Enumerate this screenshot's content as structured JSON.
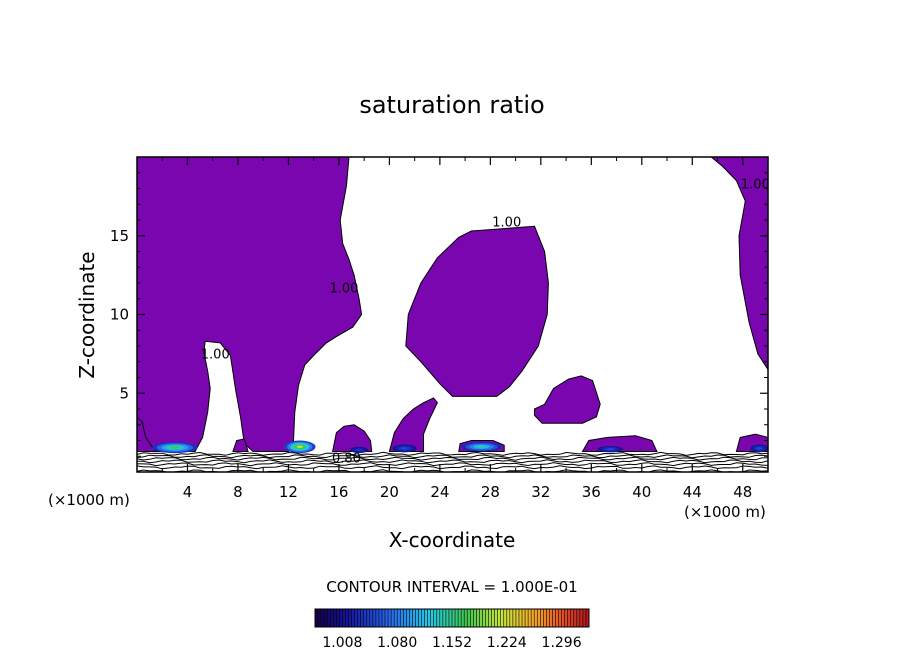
{
  "chart_data": {
    "type": "heatmap",
    "title": "saturation ratio",
    "xlabel": "X-coordinate",
    "ylabel": "Z-coordinate",
    "x_unit_left": "(×1000 m)",
    "x_unit_right": "(×1000 m)",
    "x_ticks": [
      4,
      8,
      12,
      16,
      20,
      24,
      28,
      32,
      36,
      40,
      44,
      48
    ],
    "y_ticks": [
      5,
      10,
      15
    ],
    "xlim": [
      0,
      50
    ],
    "ylim": [
      0,
      20
    ],
    "contour_interval_label": "CONTOUR INTERVAL = 1.000E-01",
    "contour_labels": [
      {
        "text": "1.00",
        "x": 29.3,
        "y": 15.6
      },
      {
        "text": "1.00",
        "x": 49,
        "y": 18
      },
      {
        "text": "1.00",
        "x": 16.4,
        "y": 11.4
      },
      {
        "text": "1.00",
        "x": 6.2,
        "y": 7.2
      },
      {
        "text": "0.80",
        "x": 16.6,
        "y": 0.6
      }
    ],
    "colorbar": {
      "ticks": [
        "1.008",
        "1.080",
        "1.152",
        "1.224",
        "1.296"
      ],
      "min": 0.972,
      "max": 1.332
    },
    "fill_color": "#7a06b0",
    "regions": [
      {
        "name": "left-mass",
        "points": [
          [
            0,
            20
          ],
          [
            16.8,
            20
          ],
          [
            16.6,
            18.2
          ],
          [
            16.1,
            16
          ],
          [
            16.3,
            14.5
          ],
          [
            16.8,
            13.5
          ],
          [
            17.2,
            12.5
          ],
          [
            17.6,
            11
          ],
          [
            17.8,
            10
          ],
          [
            17.1,
            9.2
          ],
          [
            15.8,
            8.6
          ],
          [
            15,
            8.2
          ],
          [
            14,
            7.4
          ],
          [
            13.3,
            6.8
          ],
          [
            12.8,
            5.5
          ],
          [
            12.5,
            3.8
          ],
          [
            12.4,
            2
          ],
          [
            12,
            1.3
          ],
          [
            9.2,
            1.3
          ],
          [
            8.5,
            1.8
          ],
          [
            8.2,
            3.5
          ],
          [
            7.8,
            5.3
          ],
          [
            7.4,
            7.4
          ],
          [
            6.6,
            8.2
          ],
          [
            5.4,
            8.3
          ],
          [
            5.3,
            7.6
          ],
          [
            5.6,
            6.4
          ],
          [
            5.8,
            5.3
          ],
          [
            5.6,
            3.8
          ],
          [
            5.2,
            2.2
          ],
          [
            4.6,
            1.3
          ],
          [
            0,
            1.3
          ]
        ]
      },
      {
        "name": "center-blob",
        "points": [
          [
            26.5,
            15.3
          ],
          [
            31.5,
            15.6
          ],
          [
            32.3,
            14
          ],
          [
            32.6,
            12
          ],
          [
            32.5,
            10
          ],
          [
            31.8,
            8
          ],
          [
            30.5,
            6.4
          ],
          [
            29.5,
            5.4
          ],
          [
            28.5,
            4.8
          ],
          [
            25,
            4.8
          ],
          [
            24,
            5.6
          ],
          [
            22.5,
            7
          ],
          [
            21.3,
            8
          ],
          [
            21.5,
            10
          ],
          [
            22.5,
            12
          ],
          [
            23.8,
            13.6
          ],
          [
            25.5,
            14.9
          ]
        ]
      },
      {
        "name": "right-mass",
        "points": [
          [
            45.5,
            20
          ],
          [
            50,
            20
          ],
          [
            50,
            6.5
          ],
          [
            49.2,
            7.5
          ],
          [
            48.5,
            9.5
          ],
          [
            47.8,
            12.5
          ],
          [
            47.7,
            15
          ],
          [
            48.2,
            17.2
          ],
          [
            47.5,
            18.5
          ],
          [
            46.4,
            19.4
          ]
        ]
      },
      {
        "name": "patch-36",
        "points": [
          [
            31.5,
            4
          ],
          [
            32.3,
            4.3
          ],
          [
            33,
            5.3
          ],
          [
            34.2,
            5.9
          ],
          [
            35.2,
            6.1
          ],
          [
            36.1,
            5.8
          ],
          [
            36.7,
            4.3
          ],
          [
            36.4,
            3.5
          ],
          [
            35.3,
            3.1
          ],
          [
            33.5,
            3.1
          ],
          [
            32.1,
            3.1
          ],
          [
            31.5,
            3.6
          ]
        ]
      },
      {
        "name": "patch-16",
        "points": [
          [
            15.5,
            1.3
          ],
          [
            15.8,
            2.5
          ],
          [
            16.4,
            2.9
          ],
          [
            17.2,
            3
          ],
          [
            18,
            2.6
          ],
          [
            18.5,
            2
          ],
          [
            18.6,
            1.3
          ]
        ]
      },
      {
        "name": "patch-20",
        "points": [
          [
            20,
            1.3
          ],
          [
            20.4,
            2.5
          ],
          [
            21.1,
            3.4
          ],
          [
            21.9,
            4
          ],
          [
            22.7,
            4.4
          ],
          [
            23.5,
            4.7
          ],
          [
            23.8,
            4.4
          ],
          [
            23.2,
            3.4
          ],
          [
            22.7,
            2.4
          ],
          [
            22.7,
            1.3
          ]
        ]
      },
      {
        "name": "patch-28",
        "points": [
          [
            25.5,
            1.3
          ],
          [
            25.6,
            1.8
          ],
          [
            26.5,
            2
          ],
          [
            28.2,
            2
          ],
          [
            29.1,
            1.7
          ],
          [
            29.1,
            1.3
          ]
        ]
      },
      {
        "name": "patch-38",
        "points": [
          [
            35.3,
            1.3
          ],
          [
            35.8,
            2
          ],
          [
            37.3,
            2.2
          ],
          [
            39.5,
            2.3
          ],
          [
            40.8,
            2
          ],
          [
            41.2,
            1.3
          ]
        ]
      },
      {
        "name": "patch-49",
        "points": [
          [
            47.5,
            1.3
          ],
          [
            47.8,
            2.2
          ],
          [
            49,
            2.4
          ],
          [
            50,
            2.2
          ],
          [
            50,
            1.3
          ]
        ]
      },
      {
        "name": "patch-10",
        "points": [
          [
            7.6,
            1.3
          ],
          [
            7.9,
            2
          ],
          [
            8.5,
            2.1
          ],
          [
            8.8,
            1.3
          ]
        ]
      },
      {
        "name": "patch-left-edge",
        "points": [
          [
            0,
            1.3
          ],
          [
            0,
            3.5
          ],
          [
            0.4,
            3.2
          ],
          [
            0.7,
            2.2
          ],
          [
            1.2,
            1.6
          ],
          [
            1.5,
            1.3
          ]
        ]
      }
    ],
    "color_hotspots": [
      {
        "x": 3.0,
        "y": 1.55,
        "width": 3.6,
        "height": 0.7,
        "peak": 1.17
      },
      {
        "x": 12.9,
        "y": 1.6,
        "width": 2.5,
        "height": 0.8,
        "peak": 1.21
      },
      {
        "x": 27.3,
        "y": 1.6,
        "width": 3.2,
        "height": 0.6,
        "peak": 1.14
      },
      {
        "x": 17.6,
        "y": 1.4,
        "width": 1.4,
        "height": 0.4,
        "peak": 1.04
      },
      {
        "x": 21.2,
        "y": 1.5,
        "width": 1.9,
        "height": 0.5,
        "peak": 1.05
      },
      {
        "x": 37.5,
        "y": 1.45,
        "width": 2.0,
        "height": 0.4,
        "peak": 1.05
      },
      {
        "x": 49.3,
        "y": 1.5,
        "width": 1.4,
        "height": 0.5,
        "peak": 1.05
      }
    ]
  }
}
